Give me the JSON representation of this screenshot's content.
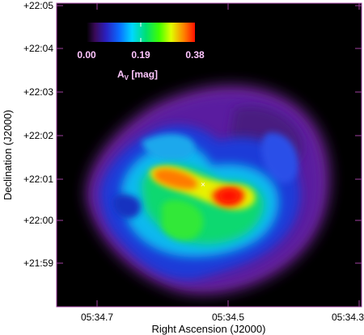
{
  "figure": {
    "x_axis_title": "Right Ascension (J2000)",
    "y_axis_title": "Declination (J2000)",
    "x_ticks": [
      "05:34.7",
      "05:34.5",
      "05:34.3"
    ],
    "y_ticks": [
      "+22:05",
      "+22:04",
      "+22:03",
      "+22:02",
      "+22:01",
      "+22:00",
      "+21:59"
    ],
    "colorbar": {
      "ticks": [
        "0.00",
        "0.19",
        "0.38"
      ],
      "label_main": "A",
      "label_sub": "V",
      "label_unit": " [mag]",
      "min": 0.0,
      "max": 0.38
    },
    "colors": {
      "frame": "#a040a0",
      "background": "#000000",
      "label_text": "#ffc6ff",
      "marker": "#ffffff"
    }
  }
}
